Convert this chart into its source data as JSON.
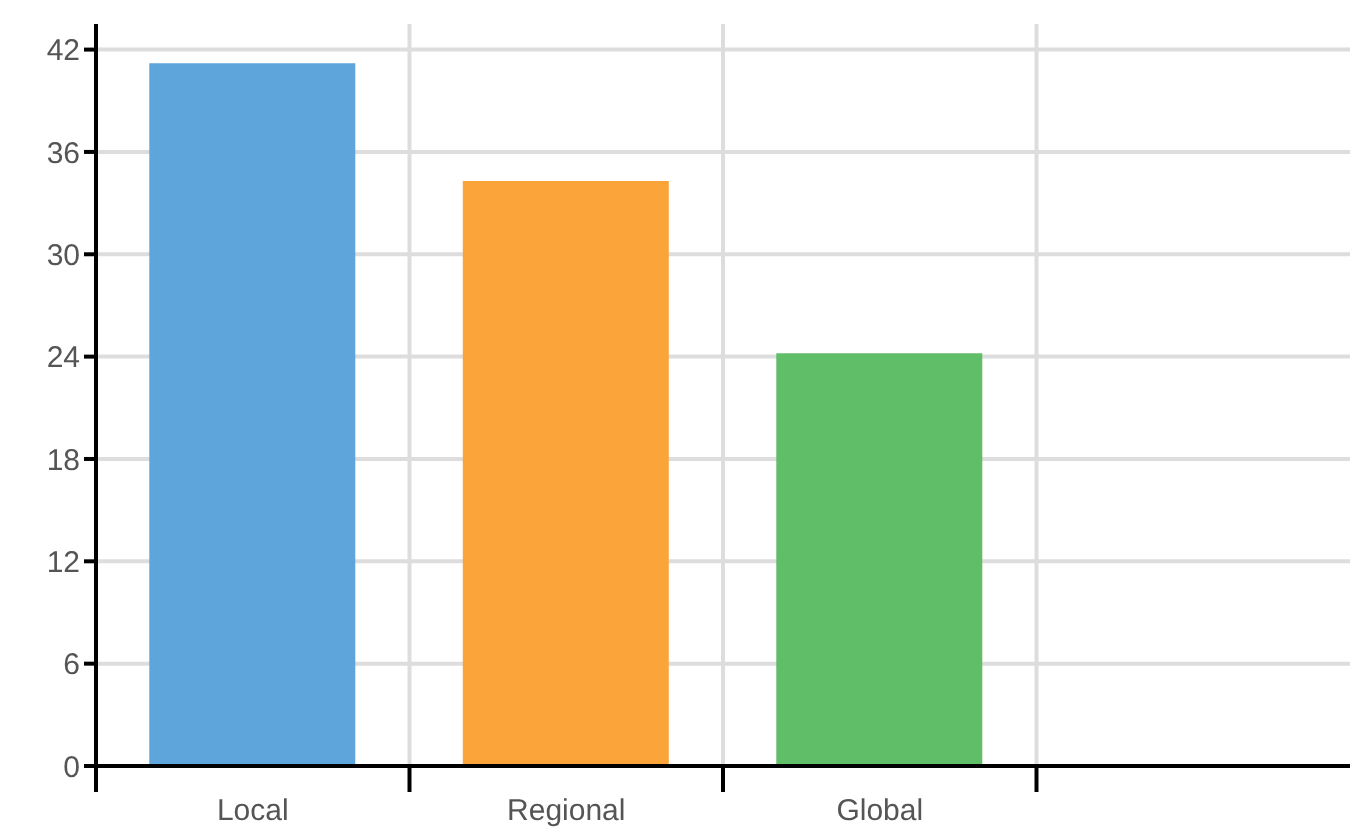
{
  "chart_data": {
    "type": "bar",
    "categories": [
      "Local",
      "Regional",
      "Global",
      null
    ],
    "values": [
      41.2,
      34.3,
      24.2,
      null
    ],
    "colors": [
      "#5da5da",
      "#faa43a",
      "#60bd68",
      "#cccccc"
    ],
    "ylim": [
      0,
      43.5
    ],
    "yticks": [
      0,
      6,
      12,
      18,
      24,
      30,
      36,
      42
    ],
    "grid": true
  }
}
